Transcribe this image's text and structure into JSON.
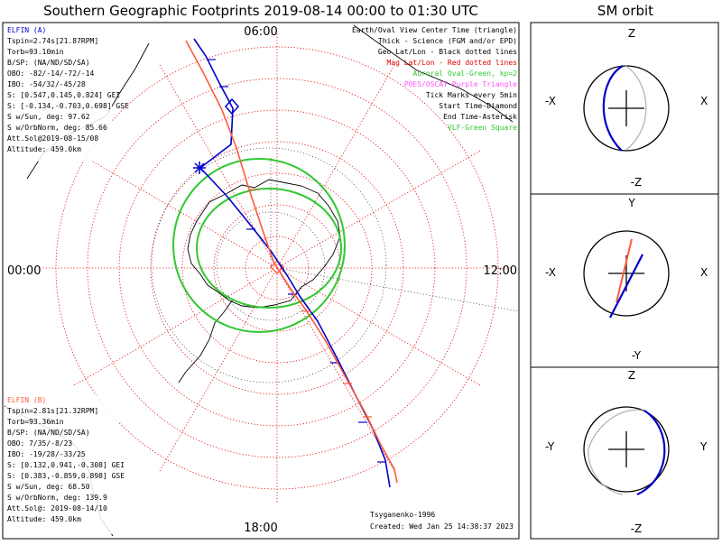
{
  "title": "Southern Geographic Footprints 2019-08-14 00:00 to 01:30 UTC",
  "sm_title": "SM orbit",
  "clock": {
    "top": "06:00",
    "left": "00:00",
    "right": "12:00",
    "bottom": "18:00"
  },
  "colors": {
    "elfin_a": "#0000c8",
    "elfin_b": "#ff5a3c",
    "aurora": "#32c832",
    "geo_grid": "#000000",
    "mag_grid": "#e00000",
    "poes": "#ff50ff",
    "grey_track": "#b4b4b4"
  },
  "elfin_a": {
    "name": "ELFIN (A)",
    "lines": [
      "Tspin=2.74s[21.87RPM]",
      "Torb=93.10min",
      "B/SP: (NA/ND/SD/SA)",
      "OBO: -82/-14/-72/-14",
      "IBO: -54/32/-45/28",
      "S: [0.547,0.145,0.824] GEI",
      "S: [-0.134,-0.703,0.698] GSE",
      "S w/Sun, deg: 97.62",
      "S w/OrbNorm, deg: 85.66",
      "Att.Sol@2019-08-15/08",
      "Altitude: 459.0km"
    ]
  },
  "elfin_b": {
    "name": "ELFIN (B)",
    "lines": [
      "Tspin=2.81s[21.32RPM]",
      "Torb=93.36min",
      "B/SP: (NA/ND/SD/SA)",
      "OBO: 7/35/-8/23",
      "IBO: -19/28/-33/25",
      "S: [0.132,0.941,-0.308] GEI",
      "S: [0.383,-0.859,0.898] GSE",
      "S w/Sun, deg: 68.50",
      "S w/OrbNorm, deg: 139.9",
      "Att.Sol@: 2019-08-14/10",
      "Altitude: 459.0km"
    ]
  },
  "legend": [
    {
      "text": "Earth/Oval View Center Time (triangle)",
      "color": "#000000"
    },
    {
      "text": "Thick - Science (FGM and/or EPD)",
      "color": "#000000"
    },
    {
      "text": "Geo Lat/Lon - Black dotted lines",
      "color": "#000000"
    },
    {
      "text": "Mag Lat/Lon - Red dotted lines",
      "color": "#e00000"
    },
    {
      "text": "Auroral Oval-Green, kp=2",
      "color": "#32c832"
    },
    {
      "text": "POES/OSCAT-Purple Triangle",
      "color": "#ff50ff"
    },
    {
      "text": "Tick Marks every 5min",
      "color": "#000000"
    },
    {
      "text": "Start Time-Diamond",
      "color": "#000000"
    },
    {
      "text": "End Time-Asterisk",
      "color": "#000000"
    },
    {
      "text": "VLF-Green Square",
      "color": "#32c832"
    }
  ],
  "credits": {
    "model": "Tsyganenko-1996",
    "created": "Created: Wed Jan 25 14:38:37 2023"
  },
  "sm_panels": [
    {
      "top": "Z",
      "bottom": "-Z",
      "left": "-X",
      "right": "X"
    },
    {
      "top": "Y",
      "bottom": "-Y",
      "left": "-X",
      "right": "X"
    },
    {
      "top": "Z",
      "bottom": "-Z",
      "left": "-Y",
      "right": "Y"
    }
  ]
}
